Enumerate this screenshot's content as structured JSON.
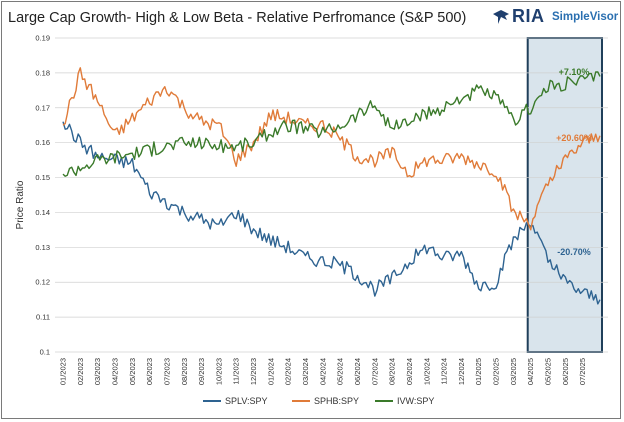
{
  "title": "Large Cap Growth- High & Low Beta - Relative Perfromance (S&P 500)",
  "logo": {
    "brand": "RIA",
    "product": "SimpleVisor"
  },
  "chart_data": {
    "type": "line",
    "title": "Large Cap Growth- High & Low Beta - Relative Perfromance (S&P 500)",
    "ylabel": "Price Ratio",
    "xlabel": "",
    "ylim": [
      0.1,
      0.19
    ],
    "yticks": [
      0.1,
      0.11,
      0.12,
      0.13,
      0.14,
      0.15,
      0.16,
      0.17,
      0.18,
      0.19
    ],
    "grid": true,
    "legend_position": "bottom",
    "x_tick_labels": [
      "01/2023",
      "02/2023",
      "03/2023",
      "04/2023",
      "05/2023",
      "06/2023",
      "07/2023",
      "08/2023",
      "09/2023",
      "10/2023",
      "11/2023",
      "12/2023",
      "01/2024",
      "02/2024",
      "03/2024",
      "04/2024",
      "05/2024",
      "06/2024",
      "07/2024",
      "08/2024",
      "09/2024",
      "10/2024",
      "11/2024",
      "12/2024",
      "01/2025",
      "02/2025",
      "03/2025",
      "04/2025",
      "05/2025",
      "06/2025",
      "07/2025"
    ],
    "x": [
      "01/2023",
      "02/2023",
      "03/2023",
      "04/2023",
      "05/2023",
      "06/2023",
      "07/2023",
      "08/2023",
      "09/2023",
      "10/2023",
      "11/2023",
      "12/2023",
      "01/2024",
      "02/2024",
      "03/2024",
      "04/2024",
      "05/2024",
      "06/2024",
      "07/2024",
      "08/2024",
      "09/2024",
      "10/2024",
      "11/2024",
      "12/2024",
      "01/2025",
      "02/2025",
      "03/2025",
      "04/2025",
      "05/2025",
      "06/2025",
      "07/2025",
      "08/2025"
    ],
    "series": [
      {
        "name": "SPLV:SPY",
        "color": "#2e6391",
        "values": [
          0.166,
          0.16,
          0.156,
          0.155,
          0.154,
          0.146,
          0.143,
          0.14,
          0.138,
          0.136,
          0.14,
          0.135,
          0.132,
          0.13,
          0.127,
          0.126,
          0.125,
          0.122,
          0.118,
          0.121,
          0.126,
          0.13,
          0.127,
          0.128,
          0.119,
          0.12,
          0.132,
          0.138,
          0.126,
          0.12,
          0.117,
          0.115
        ]
      },
      {
        "name": "SPHB:SPY",
        "color": "#e07b39",
        "values": [
          0.165,
          0.18,
          0.172,
          0.162,
          0.167,
          0.172,
          0.176,
          0.17,
          0.166,
          0.165,
          0.155,
          0.16,
          0.168,
          0.167,
          0.165,
          0.165,
          0.161,
          0.156,
          0.155,
          0.157,
          0.151,
          0.155,
          0.155,
          0.156,
          0.154,
          0.152,
          0.14,
          0.137,
          0.148,
          0.155,
          0.16,
          0.162
        ]
      },
      {
        "name": "IVW:SPY",
        "color": "#3a7a2a",
        "values": [
          0.151,
          0.153,
          0.155,
          0.156,
          0.157,
          0.158,
          0.159,
          0.16,
          0.16,
          0.159,
          0.159,
          0.16,
          0.163,
          0.165,
          0.164,
          0.163,
          0.165,
          0.168,
          0.171,
          0.164,
          0.166,
          0.168,
          0.17,
          0.173,
          0.175,
          0.173,
          0.166,
          0.17,
          0.176,
          0.177,
          0.178,
          0.179
        ]
      }
    ],
    "annotations": [
      {
        "text": "+7.10%",
        "series": "IVW:SPY",
        "color": "#3a7a2a"
      },
      {
        "text": "+20.60%",
        "series": "SPHB:SPY",
        "color": "#e07b39"
      },
      {
        "text": "-20.70%",
        "series": "SPLV:SPY",
        "color": "#2e6391"
      }
    ],
    "highlight": {
      "from": "04/2025",
      "to": "08/2025",
      "fill": "#d9e4ec",
      "stroke": "#1f3f5a"
    }
  }
}
